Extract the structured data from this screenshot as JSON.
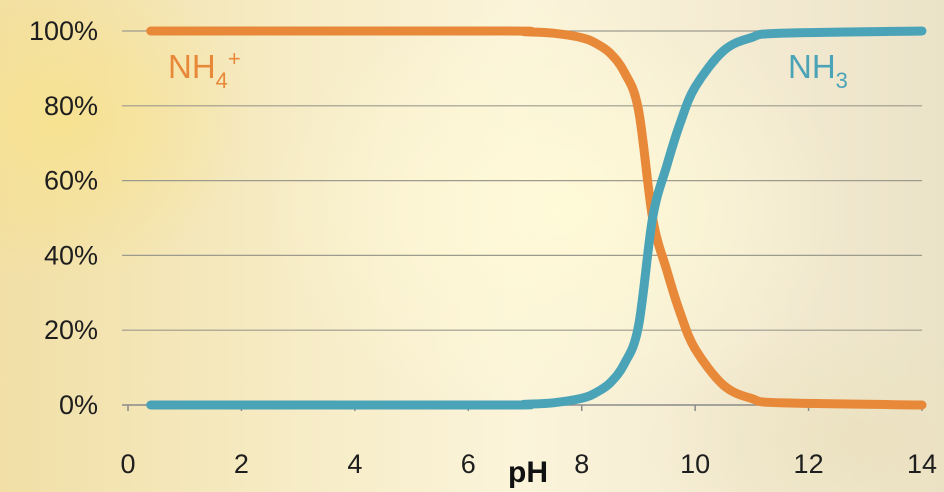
{
  "chart_data": {
    "type": "line",
    "title": "",
    "xlabel": "pH",
    "ylabel": "",
    "xlim": [
      0,
      14
    ],
    "ylim": [
      0,
      100
    ],
    "x_ticks": [
      "0",
      "2",
      "4",
      "6",
      "8",
      "10",
      "12",
      "14"
    ],
    "y_ticks": [
      "0%",
      "20%",
      "40%",
      "60%",
      "80%",
      "100%"
    ],
    "grid": true,
    "legend": "inline labels on curves",
    "pKa": 9.25,
    "series": [
      {
        "name": "NH4+",
        "label_main": "NH",
        "label_sub": "4",
        "label_sup": "+",
        "color": "#E8893A",
        "x": [
          0.4,
          6.5,
          7.0,
          7.5,
          8.0,
          8.25,
          8.5,
          8.75,
          9.0,
          9.25,
          9.5,
          9.75,
          10.0,
          10.5,
          11.0,
          11.5,
          14.0
        ],
        "y": [
          100,
          100,
          99.8,
          99.4,
          98.2,
          96.7,
          94.1,
          89.0,
          79.0,
          50.0,
          36.0,
          24.0,
          15.0,
          5.3,
          1.7,
          0.6,
          0.0
        ]
      },
      {
        "name": "NH3",
        "label_main": "NH",
        "label_sub": "3",
        "label_sup": "",
        "color": "#4BA3B8",
        "x": [
          0.4,
          6.5,
          7.0,
          7.5,
          8.0,
          8.25,
          8.5,
          8.75,
          9.0,
          9.25,
          9.5,
          9.75,
          10.0,
          10.5,
          11.0,
          11.5,
          14.0
        ],
        "y": [
          0,
          0,
          0.2,
          0.6,
          1.8,
          3.3,
          5.9,
          11.0,
          21.0,
          50.0,
          64.0,
          76.0,
          85.0,
          94.7,
          98.3,
          99.4,
          100
        ]
      }
    ]
  }
}
